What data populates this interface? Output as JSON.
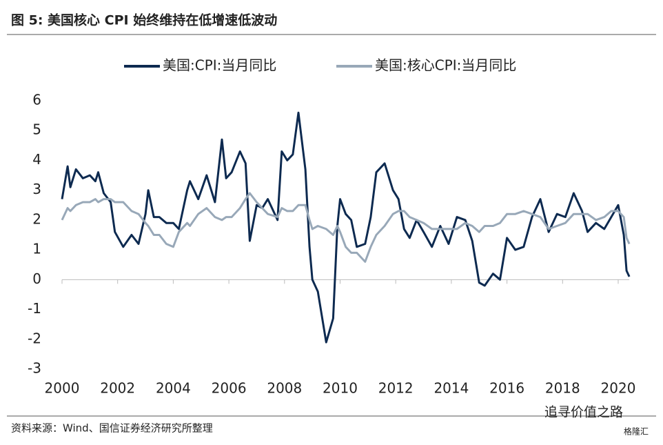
{
  "header": {
    "title": "图 5: 美国核心 CPI 始终维持在低增速低波动"
  },
  "chart_data": {
    "type": "line",
    "x": [
      2000.0,
      2000.2,
      2000.3,
      2000.5,
      2000.75,
      2001.0,
      2001.2,
      2001.3,
      2001.5,
      2001.75,
      2001.9,
      2002.2,
      2002.5,
      2002.75,
      2003.0,
      2003.1,
      2003.3,
      2003.5,
      2003.75,
      2004.0,
      2004.2,
      2004.5,
      2004.6,
      2004.9,
      2005.2,
      2005.5,
      2005.75,
      2005.9,
      2006.1,
      2006.4,
      2006.6,
      2006.75,
      2007.0,
      2007.2,
      2007.4,
      2007.75,
      2007.9,
      2008.1,
      2008.3,
      2008.5,
      2008.75,
      2008.9,
      2009.0,
      2009.2,
      2009.5,
      2009.75,
      2009.9,
      2010.0,
      2010.2,
      2010.4,
      2010.6,
      2010.9,
      2011.1,
      2011.3,
      2011.6,
      2011.9,
      2012.1,
      2012.3,
      2012.5,
      2012.75,
      2013.0,
      2013.3,
      2013.6,
      2013.9,
      2014.2,
      2014.5,
      2014.75,
      2015.0,
      2015.2,
      2015.5,
      2015.75,
      2016.0,
      2016.3,
      2016.6,
      2016.9,
      2017.2,
      2017.5,
      2017.8,
      2018.1,
      2018.4,
      2018.7,
      2018.9,
      2019.2,
      2019.5,
      2019.75,
      2020.0,
      2020.2,
      2020.3,
      2020.4
    ],
    "series": [
      {
        "name": "美国:CPI:当月同比",
        "color": "#0d2a50",
        "values": [
          2.7,
          3.8,
          3.1,
          3.7,
          3.4,
          3.5,
          3.3,
          3.6,
          2.9,
          2.6,
          1.6,
          1.1,
          1.5,
          1.2,
          2.2,
          3.0,
          2.1,
          2.1,
          1.9,
          1.9,
          1.7,
          3.0,
          3.3,
          2.7,
          3.5,
          2.6,
          4.7,
          3.4,
          3.6,
          4.3,
          3.9,
          1.3,
          2.5,
          2.4,
          2.7,
          2.0,
          4.3,
          4.0,
          4.2,
          5.6,
          3.7,
          1.1,
          0.0,
          -0.4,
          -2.1,
          -1.3,
          1.8,
          2.7,
          2.2,
          2.0,
          1.1,
          1.2,
          2.1,
          3.6,
          3.9,
          3.0,
          2.7,
          1.7,
          1.4,
          2.0,
          1.6,
          1.1,
          1.8,
          1.2,
          2.1,
          2.0,
          1.3,
          -0.1,
          -0.2,
          0.2,
          0.0,
          1.4,
          1.0,
          1.1,
          2.1,
          2.7,
          1.6,
          2.2,
          2.1,
          2.9,
          2.3,
          1.6,
          1.9,
          1.7,
          2.1,
          2.5,
          1.5,
          0.3,
          0.1
        ]
      },
      {
        "name": "美国:核心CPI:当月同比",
        "color": "#98a8b8",
        "values": [
          2.0,
          2.4,
          2.3,
          2.5,
          2.6,
          2.6,
          2.7,
          2.6,
          2.7,
          2.7,
          2.6,
          2.6,
          2.3,
          2.2,
          1.9,
          1.8,
          1.5,
          1.5,
          1.2,
          1.1,
          1.6,
          1.9,
          1.8,
          2.2,
          2.4,
          2.1,
          2.0,
          2.1,
          2.1,
          2.4,
          2.7,
          2.9,
          2.6,
          2.4,
          2.2,
          2.1,
          2.4,
          2.3,
          2.3,
          2.5,
          2.5,
          2.0,
          1.7,
          1.8,
          1.7,
          1.5,
          1.8,
          1.6,
          1.1,
          0.9,
          0.9,
          0.6,
          1.1,
          1.5,
          1.8,
          2.2,
          2.3,
          2.3,
          2.1,
          2.0,
          1.9,
          1.7,
          1.7,
          1.7,
          1.7,
          1.9,
          1.8,
          1.6,
          1.8,
          1.8,
          1.9,
          2.2,
          2.2,
          2.3,
          2.2,
          2.1,
          1.7,
          1.8,
          1.9,
          2.2,
          2.2,
          2.2,
          2.0,
          2.1,
          2.3,
          2.3,
          2.1,
          1.4,
          1.2
        ]
      }
    ],
    "xlim": [
      2000,
      2020.4
    ],
    "xticks": [
      2000,
      2002,
      2004,
      2006,
      2008,
      2010,
      2012,
      2014,
      2016,
      2018,
      2020
    ],
    "ylim": [
      -3,
      6
    ],
    "yticks": [
      -3,
      -2,
      -1,
      0,
      1,
      2,
      3,
      4,
      5,
      6
    ],
    "grid": false
  },
  "footer": {
    "source": "资料来源：Wind、国信证券经济研究所整理",
    "watermark": "追寻价值之路",
    "logo": "格隆汇"
  }
}
